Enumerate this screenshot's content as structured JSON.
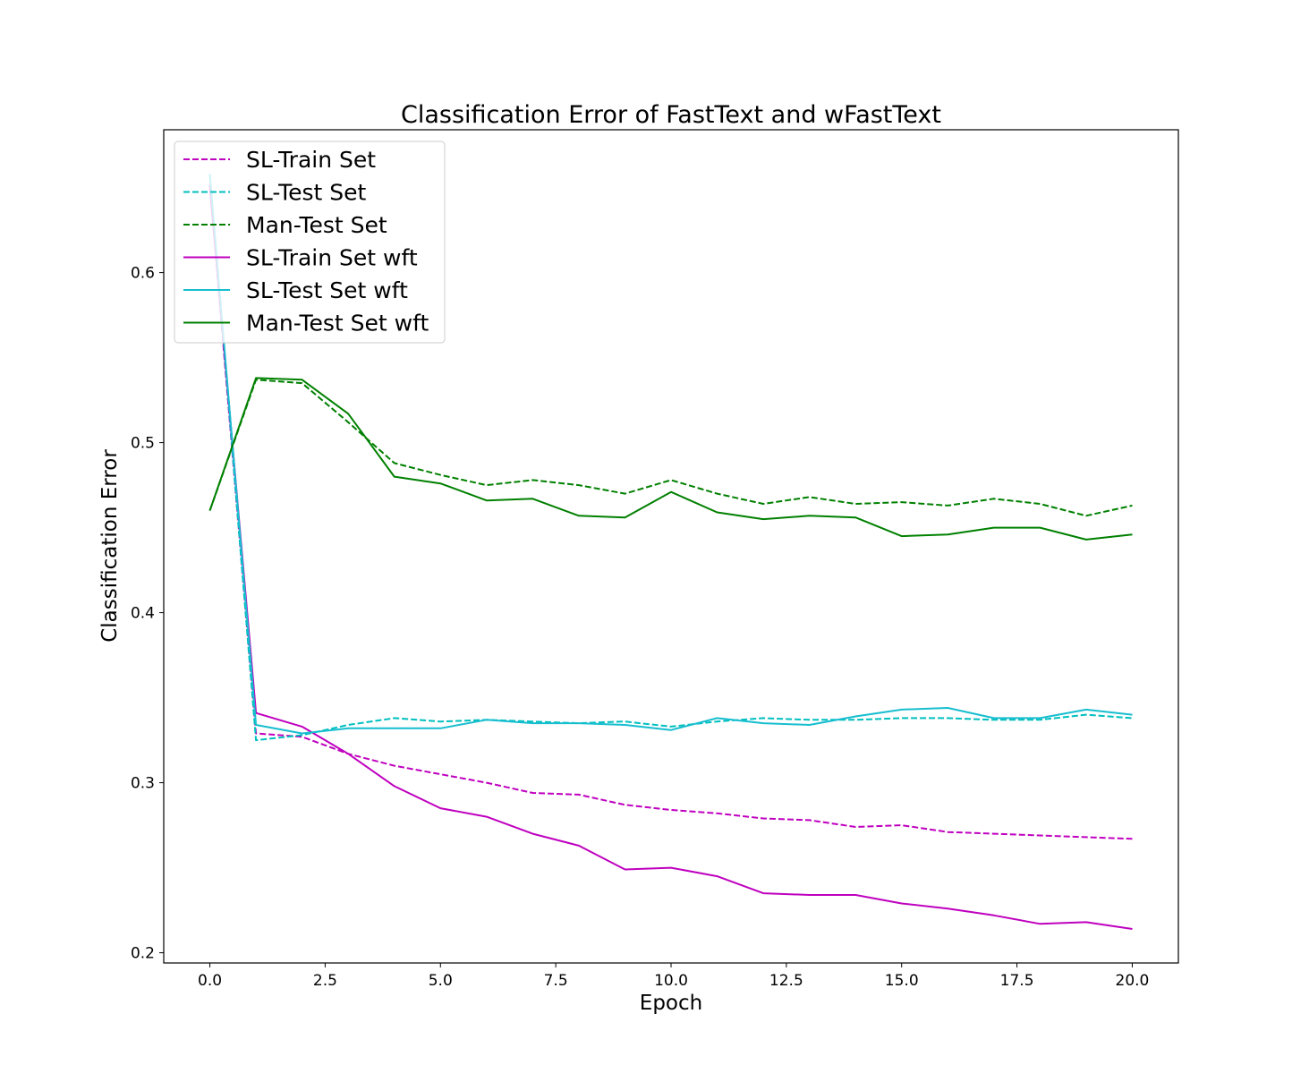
{
  "chart_data": {
    "type": "line",
    "title": "Classification Error of FastText and wFastText",
    "xlabel": "Epoch",
    "ylabel": "Classification Error",
    "xlim": [
      -1.0,
      21.0
    ],
    "ylim": [
      0.194,
      0.684
    ],
    "xticks": [
      0.0,
      2.5,
      5.0,
      7.5,
      10.0,
      12.5,
      15.0,
      17.5,
      20.0
    ],
    "xtick_labels": [
      "0.0",
      "2.5",
      "5.0",
      "7.5",
      "10.0",
      "12.5",
      "15.0",
      "17.5",
      "20.0"
    ],
    "yticks": [
      0.2,
      0.3,
      0.4,
      0.5,
      0.6
    ],
    "ytick_labels": [
      "0.2",
      "0.3",
      "0.4",
      "0.5",
      "0.6"
    ],
    "grid": false,
    "legend_position": "top-left",
    "x": [
      0,
      1,
      2,
      3,
      4,
      5,
      6,
      7,
      8,
      9,
      10,
      11,
      12,
      13,
      14,
      15,
      16,
      17,
      18,
      19,
      20
    ],
    "series": [
      {
        "name": "SL-Train Set",
        "color": "#bf00bf",
        "dashed": true,
        "values": [
          0.652,
          0.329,
          0.327,
          0.317,
          0.31,
          0.305,
          0.3,
          0.294,
          0.293,
          0.287,
          0.284,
          0.282,
          0.279,
          0.278,
          0.274,
          0.275,
          0.271,
          0.27,
          0.269,
          0.268,
          0.267
        ]
      },
      {
        "name": "SL-Test Set",
        "color": "#00bfbf",
        "dashed": true,
        "values": [
          0.658,
          0.325,
          0.328,
          0.334,
          0.338,
          0.336,
          0.337,
          0.336,
          0.335,
          0.336,
          0.333,
          0.336,
          0.338,
          0.337,
          0.337,
          0.338,
          0.338,
          0.337,
          0.337,
          0.34,
          0.338
        ]
      },
      {
        "name": "Man-Test Set",
        "color": "#008000",
        "dashed": true,
        "values": [
          0.46,
          0.537,
          0.535,
          0.512,
          0.488,
          0.481,
          0.475,
          0.478,
          0.475,
          0.47,
          0.478,
          0.47,
          0.464,
          0.468,
          0.464,
          0.465,
          0.463,
          0.467,
          0.464,
          0.457,
          0.463
        ]
      },
      {
        "name": "SL-Train Set wft",
        "color": "#bf00bf",
        "dashed": false,
        "values": [
          0.651,
          0.341,
          0.333,
          0.317,
          0.298,
          0.285,
          0.28,
          0.27,
          0.263,
          0.249,
          0.25,
          0.245,
          0.235,
          0.234,
          0.234,
          0.229,
          0.226,
          0.222,
          0.217,
          0.218,
          0.214
        ]
      },
      {
        "name": "SL-Test Set wft",
        "color": "#17becf",
        "dashed": false,
        "values": [
          0.658,
          0.334,
          0.329,
          0.332,
          0.332,
          0.332,
          0.337,
          0.335,
          0.335,
          0.334,
          0.331,
          0.338,
          0.335,
          0.334,
          0.339,
          0.343,
          0.344,
          0.338,
          0.338,
          0.343,
          0.34
        ]
      },
      {
        "name": "Man-Test Set wft",
        "color": "#008000",
        "dashed": false,
        "values": [
          0.46,
          0.538,
          0.537,
          0.517,
          0.48,
          0.476,
          0.466,
          0.467,
          0.457,
          0.456,
          0.471,
          0.459,
          0.455,
          0.457,
          0.456,
          0.445,
          0.446,
          0.45,
          0.45,
          0.443,
          0.446
        ]
      }
    ]
  }
}
